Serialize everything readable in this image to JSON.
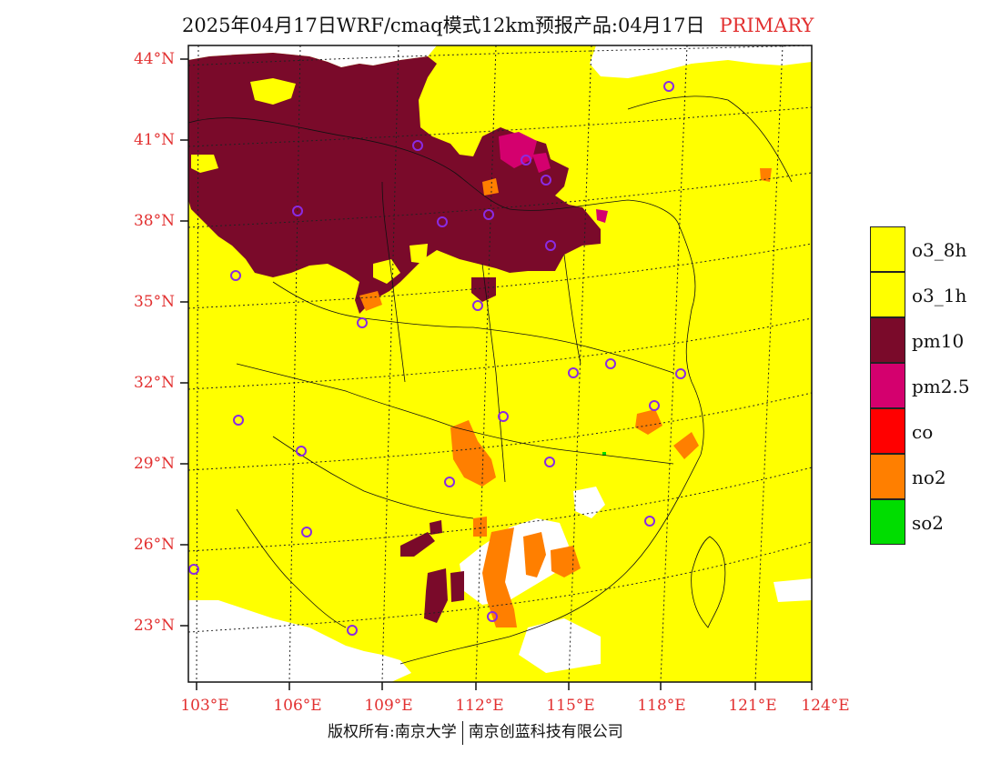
{
  "title": {
    "text": "2025年04月17日WRF/cmaq模式12km预报产品:04月17日",
    "tag": "PRIMARY"
  },
  "axes": {
    "lat_ticks": [
      "44°N",
      "41°N",
      "38°N",
      "35°N",
      "32°N",
      "29°N",
      "26°N",
      "23°N"
    ],
    "lon_ticks": [
      "103°E",
      "106°E",
      "109°E",
      "112°E",
      "115°E",
      "118°E",
      "121°E",
      "124°E"
    ]
  },
  "legend": [
    {
      "label": "o3_8h",
      "color": "#ffff00"
    },
    {
      "label": "o3_1h",
      "color": "#ffff00"
    },
    {
      "label": "pm10",
      "color": "#7a0a2a"
    },
    {
      "label": "pm2.5",
      "color": "#d4006e"
    },
    {
      "label": "co",
      "color": "#ff0000"
    },
    {
      "label": "no2",
      "color": "#ff7f00"
    },
    {
      "label": "so2",
      "color": "#00dd00"
    }
  ],
  "footer": {
    "left": "版权所有:南京大学",
    "right": "南京创蓝科技有限公司"
  },
  "colors": {
    "label_red": "#e23030",
    "background_fill": "#ffff00",
    "city_marker": "#8a2be2"
  }
}
